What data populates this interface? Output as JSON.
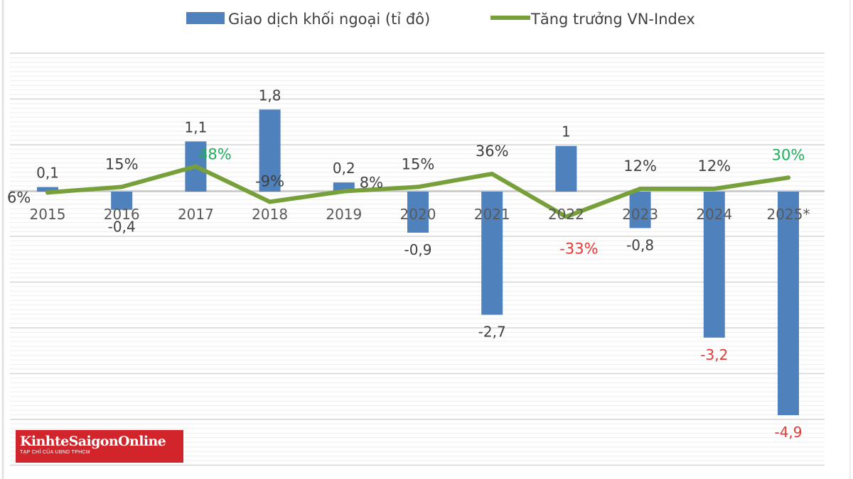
{
  "chart_data": {
    "type": "bar",
    "title": "",
    "xlabel": "",
    "ylabel": "",
    "legend_position": "top",
    "grid": true,
    "categories": [
      "2015",
      "2016",
      "2017",
      "2018",
      "2019",
      "2020",
      "2021",
      "2022",
      "2023",
      "2024",
      "2025*"
    ],
    "series": [
      {
        "name": "Giao dịch khối ngoại (tỉ đô)",
        "kind": "bar",
        "color": "#4f81bd",
        "values": [
          0.1,
          -0.4,
          1.1,
          1.8,
          0.2,
          -0.9,
          -2.7,
          1,
          -0.8,
          -3.2,
          -4.9
        ],
        "labels": [
          "0,1",
          "-0,4",
          "1,1",
          "1,8",
          "0,2",
          "-0,9",
          "-2,7",
          "1",
          "-0,8",
          "-3,2",
          "-4,9"
        ],
        "label_colors": [
          "#404040",
          "#404040",
          "#404040",
          "#404040",
          "#404040",
          "#404040",
          "#404040",
          "#404040",
          "#404040",
          "#e53935",
          "#e53935"
        ]
      },
      {
        "name": "Tăng trưởng VN-Index",
        "kind": "line",
        "color": "#77a03b",
        "values": [
          6,
          15,
          48,
          -9,
          8,
          15,
          36,
          -33,
          12,
          12,
          30
        ],
        "labels": [
          "6%",
          "15%",
          "48%",
          "-9%",
          "8%",
          "15%",
          "36%",
          "-33%",
          "12%",
          "12%",
          "30%"
        ],
        "label_colors": [
          "#404040",
          "#404040",
          "#1fae5b",
          "#404040",
          "#404040",
          "#404040",
          "#404040",
          "#e53935",
          "#404040",
          "#404040",
          "#1fae5b"
        ]
      }
    ]
  },
  "logo": {
    "text": "KinhteSaigonOnline",
    "subtext": "TẠP CHÍ CỦA UBND TPHCM"
  }
}
